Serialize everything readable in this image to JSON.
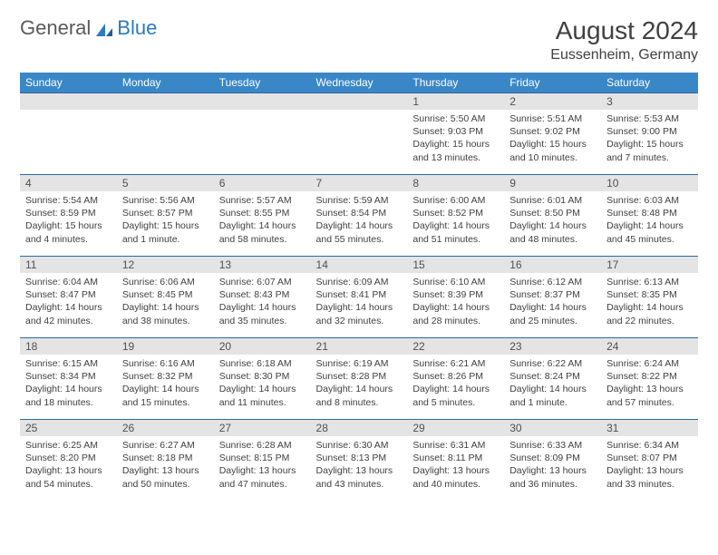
{
  "brand": {
    "part1": "General",
    "part2": "Blue"
  },
  "header": {
    "title": "August 2024",
    "location": "Eussenheim, Germany"
  },
  "colors": {
    "header_bg": "#3a87c8",
    "header_text": "#ffffff",
    "daynum_bg": "#e4e4e4",
    "border": "#2a6aa0",
    "text": "#404040",
    "logo_gray": "#5a5a5a",
    "logo_blue": "#2a7bbf",
    "page_bg": "#ffffff"
  },
  "fonts": {
    "title_pt": 28,
    "location_pt": 16,
    "dayhead_pt": 12,
    "cell_pt": 10.5
  },
  "calendar": {
    "day_headers": [
      "Sunday",
      "Monday",
      "Tuesday",
      "Wednesday",
      "Thursday",
      "Friday",
      "Saturday"
    ],
    "weeks": [
      [
        null,
        null,
        null,
        null,
        {
          "n": "1",
          "sunrise": "Sunrise: 5:50 AM",
          "sunset": "Sunset: 9:03 PM",
          "day1": "Daylight: 15 hours",
          "day2": "and 13 minutes."
        },
        {
          "n": "2",
          "sunrise": "Sunrise: 5:51 AM",
          "sunset": "Sunset: 9:02 PM",
          "day1": "Daylight: 15 hours",
          "day2": "and 10 minutes."
        },
        {
          "n": "3",
          "sunrise": "Sunrise: 5:53 AM",
          "sunset": "Sunset: 9:00 PM",
          "day1": "Daylight: 15 hours",
          "day2": "and 7 minutes."
        }
      ],
      [
        {
          "n": "4",
          "sunrise": "Sunrise: 5:54 AM",
          "sunset": "Sunset: 8:59 PM",
          "day1": "Daylight: 15 hours",
          "day2": "and 4 minutes."
        },
        {
          "n": "5",
          "sunrise": "Sunrise: 5:56 AM",
          "sunset": "Sunset: 8:57 PM",
          "day1": "Daylight: 15 hours",
          "day2": "and 1 minute."
        },
        {
          "n": "6",
          "sunrise": "Sunrise: 5:57 AM",
          "sunset": "Sunset: 8:55 PM",
          "day1": "Daylight: 14 hours",
          "day2": "and 58 minutes."
        },
        {
          "n": "7",
          "sunrise": "Sunrise: 5:59 AM",
          "sunset": "Sunset: 8:54 PM",
          "day1": "Daylight: 14 hours",
          "day2": "and 55 minutes."
        },
        {
          "n": "8",
          "sunrise": "Sunrise: 6:00 AM",
          "sunset": "Sunset: 8:52 PM",
          "day1": "Daylight: 14 hours",
          "day2": "and 51 minutes."
        },
        {
          "n": "9",
          "sunrise": "Sunrise: 6:01 AM",
          "sunset": "Sunset: 8:50 PM",
          "day1": "Daylight: 14 hours",
          "day2": "and 48 minutes."
        },
        {
          "n": "10",
          "sunrise": "Sunrise: 6:03 AM",
          "sunset": "Sunset: 8:48 PM",
          "day1": "Daylight: 14 hours",
          "day2": "and 45 minutes."
        }
      ],
      [
        {
          "n": "11",
          "sunrise": "Sunrise: 6:04 AM",
          "sunset": "Sunset: 8:47 PM",
          "day1": "Daylight: 14 hours",
          "day2": "and 42 minutes."
        },
        {
          "n": "12",
          "sunrise": "Sunrise: 6:06 AM",
          "sunset": "Sunset: 8:45 PM",
          "day1": "Daylight: 14 hours",
          "day2": "and 38 minutes."
        },
        {
          "n": "13",
          "sunrise": "Sunrise: 6:07 AM",
          "sunset": "Sunset: 8:43 PM",
          "day1": "Daylight: 14 hours",
          "day2": "and 35 minutes."
        },
        {
          "n": "14",
          "sunrise": "Sunrise: 6:09 AM",
          "sunset": "Sunset: 8:41 PM",
          "day1": "Daylight: 14 hours",
          "day2": "and 32 minutes."
        },
        {
          "n": "15",
          "sunrise": "Sunrise: 6:10 AM",
          "sunset": "Sunset: 8:39 PM",
          "day1": "Daylight: 14 hours",
          "day2": "and 28 minutes."
        },
        {
          "n": "16",
          "sunrise": "Sunrise: 6:12 AM",
          "sunset": "Sunset: 8:37 PM",
          "day1": "Daylight: 14 hours",
          "day2": "and 25 minutes."
        },
        {
          "n": "17",
          "sunrise": "Sunrise: 6:13 AM",
          "sunset": "Sunset: 8:35 PM",
          "day1": "Daylight: 14 hours",
          "day2": "and 22 minutes."
        }
      ],
      [
        {
          "n": "18",
          "sunrise": "Sunrise: 6:15 AM",
          "sunset": "Sunset: 8:34 PM",
          "day1": "Daylight: 14 hours",
          "day2": "and 18 minutes."
        },
        {
          "n": "19",
          "sunrise": "Sunrise: 6:16 AM",
          "sunset": "Sunset: 8:32 PM",
          "day1": "Daylight: 14 hours",
          "day2": "and 15 minutes."
        },
        {
          "n": "20",
          "sunrise": "Sunrise: 6:18 AM",
          "sunset": "Sunset: 8:30 PM",
          "day1": "Daylight: 14 hours",
          "day2": "and 11 minutes."
        },
        {
          "n": "21",
          "sunrise": "Sunrise: 6:19 AM",
          "sunset": "Sunset: 8:28 PM",
          "day1": "Daylight: 14 hours",
          "day2": "and 8 minutes."
        },
        {
          "n": "22",
          "sunrise": "Sunrise: 6:21 AM",
          "sunset": "Sunset: 8:26 PM",
          "day1": "Daylight: 14 hours",
          "day2": "and 5 minutes."
        },
        {
          "n": "23",
          "sunrise": "Sunrise: 6:22 AM",
          "sunset": "Sunset: 8:24 PM",
          "day1": "Daylight: 14 hours",
          "day2": "and 1 minute."
        },
        {
          "n": "24",
          "sunrise": "Sunrise: 6:24 AM",
          "sunset": "Sunset: 8:22 PM",
          "day1": "Daylight: 13 hours",
          "day2": "and 57 minutes."
        }
      ],
      [
        {
          "n": "25",
          "sunrise": "Sunrise: 6:25 AM",
          "sunset": "Sunset: 8:20 PM",
          "day1": "Daylight: 13 hours",
          "day2": "and 54 minutes."
        },
        {
          "n": "26",
          "sunrise": "Sunrise: 6:27 AM",
          "sunset": "Sunset: 8:18 PM",
          "day1": "Daylight: 13 hours",
          "day2": "and 50 minutes."
        },
        {
          "n": "27",
          "sunrise": "Sunrise: 6:28 AM",
          "sunset": "Sunset: 8:15 PM",
          "day1": "Daylight: 13 hours",
          "day2": "and 47 minutes."
        },
        {
          "n": "28",
          "sunrise": "Sunrise: 6:30 AM",
          "sunset": "Sunset: 8:13 PM",
          "day1": "Daylight: 13 hours",
          "day2": "and 43 minutes."
        },
        {
          "n": "29",
          "sunrise": "Sunrise: 6:31 AM",
          "sunset": "Sunset: 8:11 PM",
          "day1": "Daylight: 13 hours",
          "day2": "and 40 minutes."
        },
        {
          "n": "30",
          "sunrise": "Sunrise: 6:33 AM",
          "sunset": "Sunset: 8:09 PM",
          "day1": "Daylight: 13 hours",
          "day2": "and 36 minutes."
        },
        {
          "n": "31",
          "sunrise": "Sunrise: 6:34 AM",
          "sunset": "Sunset: 8:07 PM",
          "day1": "Daylight: 13 hours",
          "day2": "and 33 minutes."
        }
      ]
    ]
  }
}
